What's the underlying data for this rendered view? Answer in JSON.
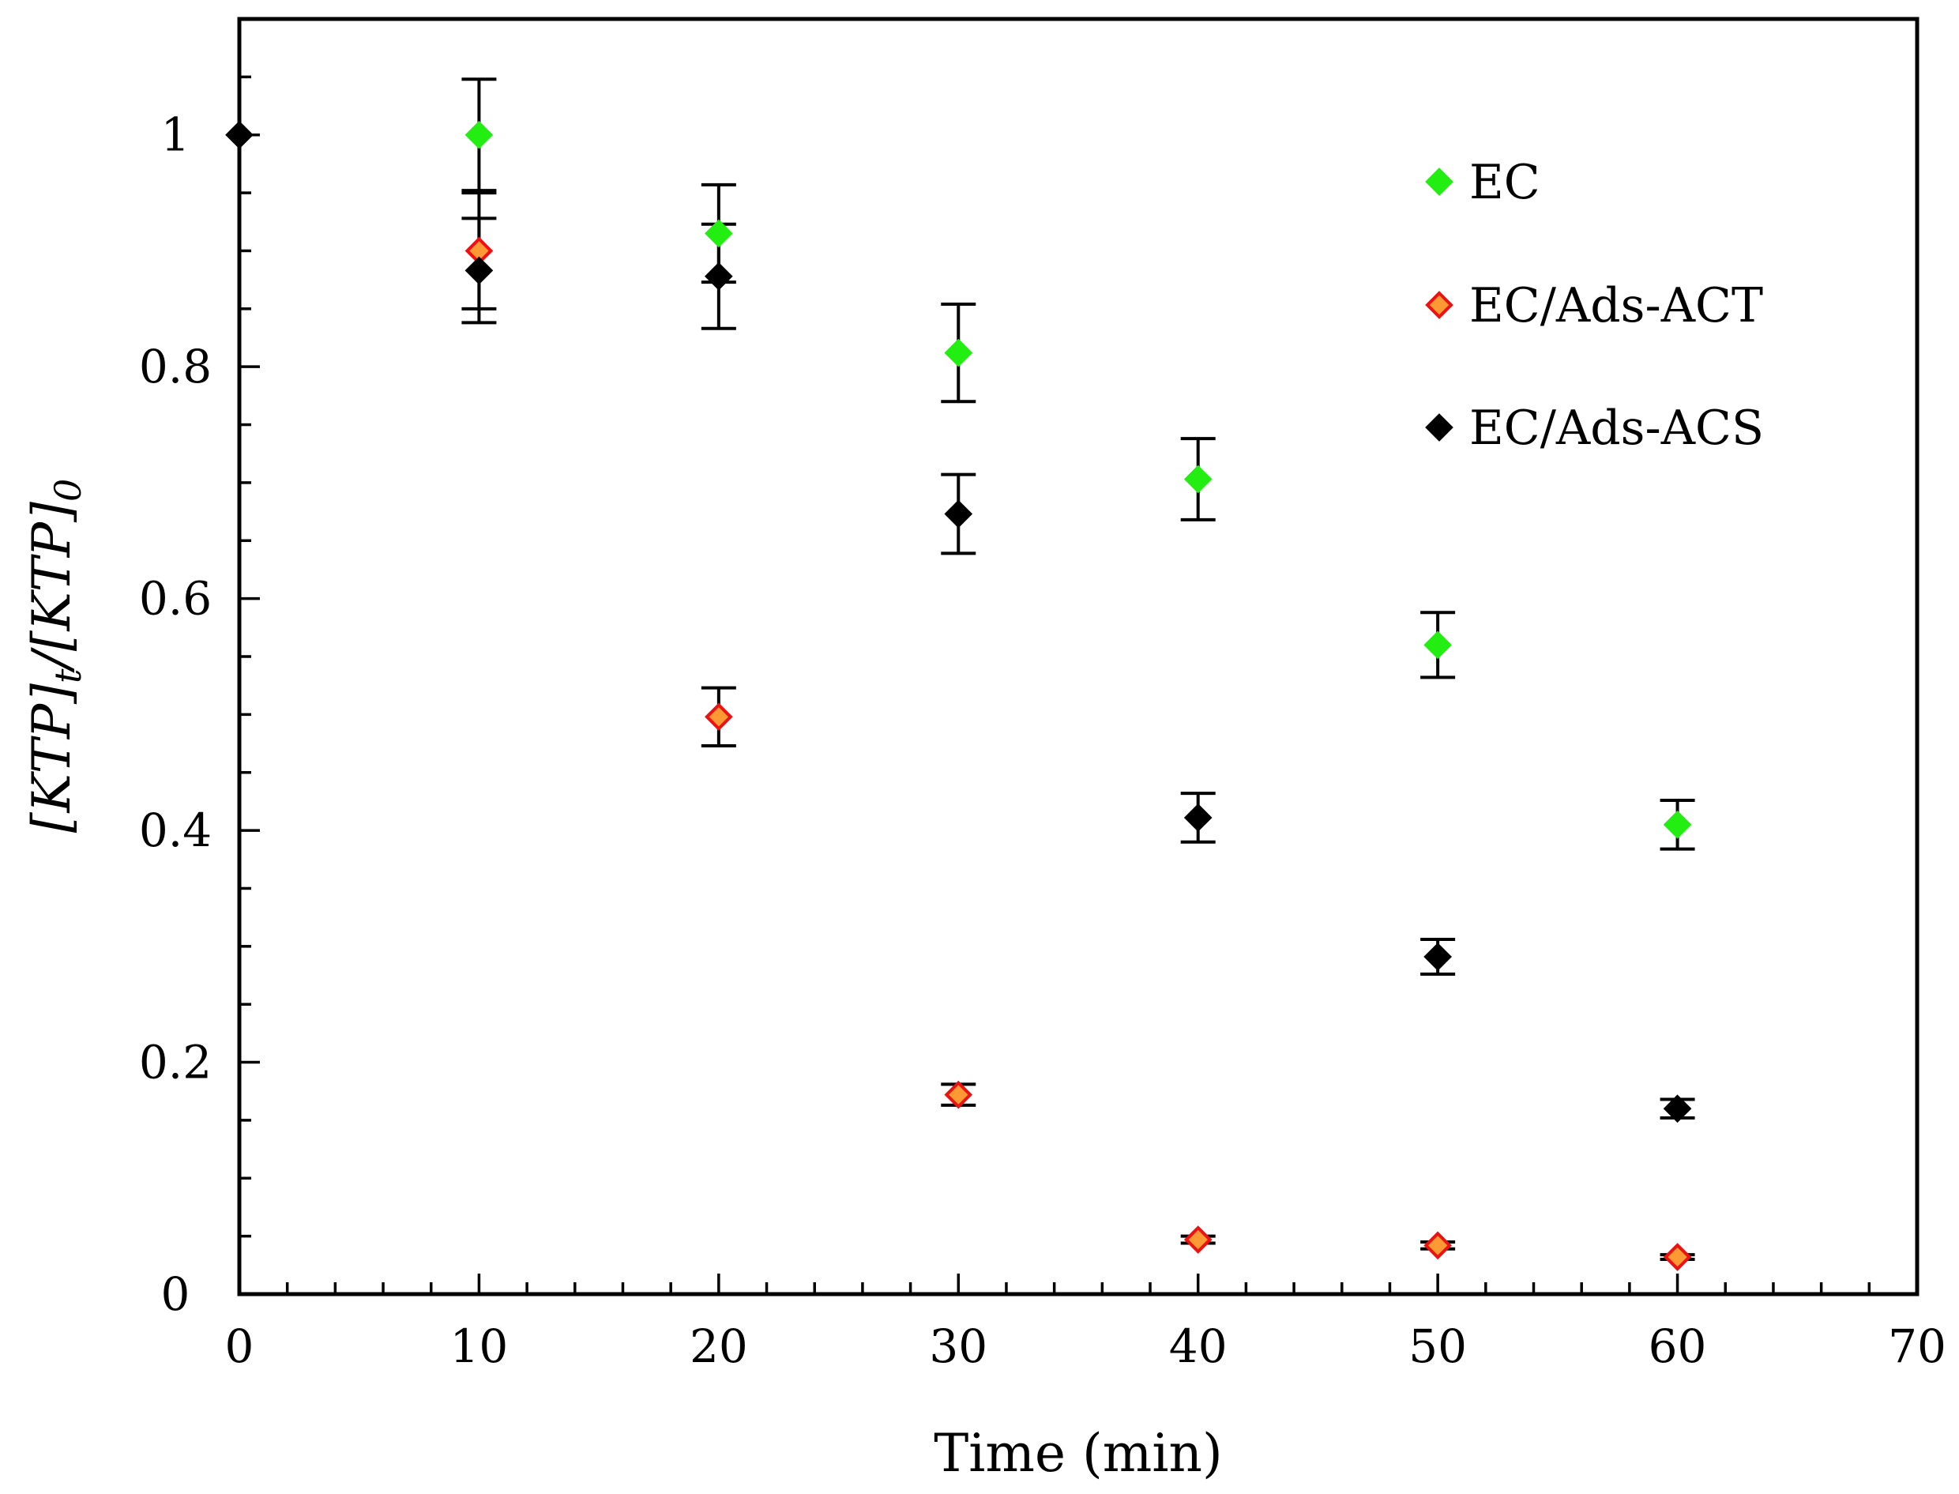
{
  "chart_data": {
    "type": "scatter",
    "xlabel": "Time (min)",
    "ylabel": {
      "parts": [
        {
          "text": "[KTP]",
          "sub": false
        },
        {
          "text": "t",
          "sub": true
        },
        {
          "text": "/[KTP]",
          "sub": false
        },
        {
          "text": "0",
          "sub": true
        }
      ]
    },
    "xlim": [
      0,
      70
    ],
    "ylim": [
      0,
      1.1
    ],
    "x_ticks": [
      0,
      10,
      20,
      30,
      40,
      50,
      60,
      70
    ],
    "x_tick_labels": [
      "0",
      "10",
      "20",
      "30",
      "40",
      "50",
      "60",
      "70"
    ],
    "y_ticks": [
      0,
      0.2,
      0.4,
      0.6,
      0.8,
      1
    ],
    "y_tick_labels": [
      "0",
      "0.2",
      "0.4",
      "0.6",
      "0.8",
      "1"
    ],
    "x_minor_step": 2,
    "y_minor_step": 0.05,
    "grid": false,
    "legend_position": "top-right",
    "series": [
      {
        "name": "EC",
        "color": "#22ee11",
        "edge": "#22ee11",
        "points": [
          {
            "x": 10,
            "y": 1.0,
            "err": 0.048
          },
          {
            "x": 20,
            "y": 0.915,
            "err": 0.042
          },
          {
            "x": 30,
            "y": 0.812,
            "err": 0.042
          },
          {
            "x": 40,
            "y": 0.703,
            "err": 0.035
          },
          {
            "x": 50,
            "y": 0.56,
            "err": 0.028
          },
          {
            "x": 60,
            "y": 0.405,
            "err": 0.021
          }
        ]
      },
      {
        "name": "EC/Ads-ACT",
        "color": "#ff9933",
        "edge": "#ee1111",
        "points": [
          {
            "x": 10,
            "y": 0.9,
            "err": 0.05
          },
          {
            "x": 20,
            "y": 0.498,
            "err": 0.025
          },
          {
            "x": 30,
            "y": 0.172,
            "err": 0.009
          },
          {
            "x": 40,
            "y": 0.047,
            "err": 0.003
          },
          {
            "x": 50,
            "y": 0.042,
            "err": 0.003
          },
          {
            "x": 60,
            "y": 0.032,
            "err": 0.002
          }
        ]
      },
      {
        "name": "EC/Ads-ACS",
        "color": "#000000",
        "edge": "#000000",
        "points": [
          {
            "x": 0,
            "y": 1.0,
            "err": 0
          },
          {
            "x": 10,
            "y": 0.883,
            "err": 0.045
          },
          {
            "x": 20,
            "y": 0.878,
            "err": 0.045
          },
          {
            "x": 30,
            "y": 0.673,
            "err": 0.034
          },
          {
            "x": 40,
            "y": 0.411,
            "err": 0.021
          },
          {
            "x": 50,
            "y": 0.291,
            "err": 0.015
          },
          {
            "x": 60,
            "y": 0.16,
            "err": 0.008
          }
        ]
      }
    ]
  }
}
